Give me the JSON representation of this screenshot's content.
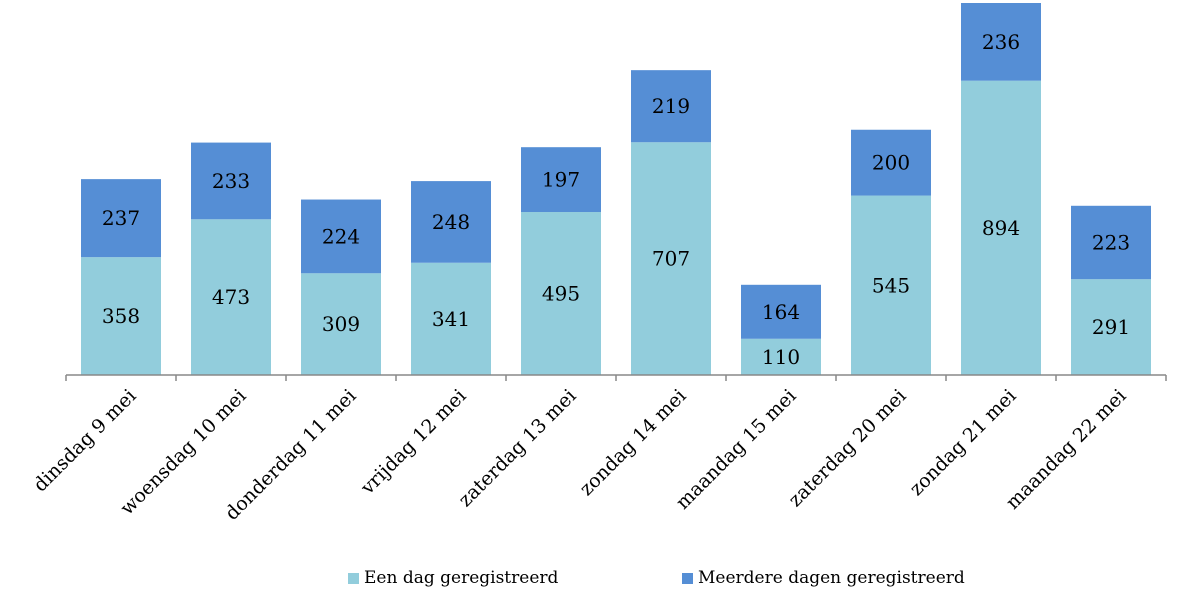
{
  "chart_data": {
    "type": "bar",
    "stacked": true,
    "categories": [
      "dinsdag 9 mei",
      "woensdag 10 mei",
      "donderdag 11 mei",
      "vrijdag 12 mei",
      "zaterdag 13 mei",
      "zondag 14 mei",
      "maandag 15 mei",
      "zaterdag 20 mei",
      "zondag 21 mei",
      "maandag 22 mei"
    ],
    "series": [
      {
        "name": "Een dag geregistreerd",
        "color": "#92cddc",
        "values": [
          358,
          473,
          309,
          341,
          495,
          707,
          110,
          545,
          894,
          291
        ]
      },
      {
        "name": "Meerdere dagen geregistreerd",
        "color": "#558ed5",
        "values": [
          237,
          233,
          224,
          248,
          197,
          219,
          164,
          200,
          236,
          223
        ]
      }
    ],
    "ylim": [
      0,
      1130
    ],
    "grid": false,
    "legend_position": "bottom"
  }
}
